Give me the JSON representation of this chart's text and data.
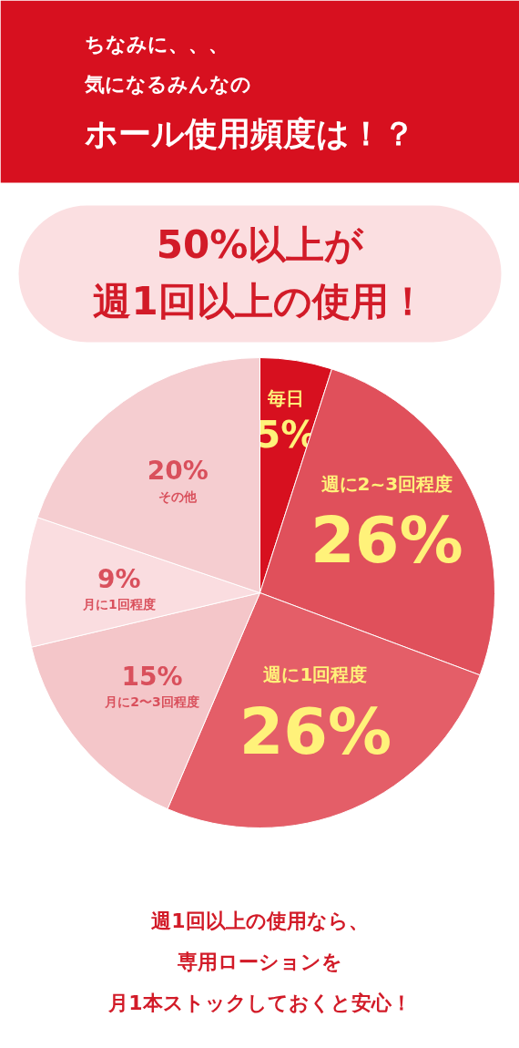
{
  "chart_data": {
    "type": "pie",
    "title": "ホール使用頻度は！？",
    "subtitle": "週1回以上の使用！",
    "categories": [
      "毎日",
      "週に2~3回程度",
      "週に1回程度",
      "月に2〜3回程度",
      "月に1回程度",
      "その他"
    ],
    "values": [
      5,
      26,
      26,
      15,
      9,
      20
    ],
    "value_labels": [
      "5%",
      "26%",
      "26%",
      "15%",
      "9%",
      "20%"
    ],
    "colors": [
      "#d7101f",
      "#e0505b",
      "#e45e68",
      "#f4c6c9",
      "#fadde0",
      "#f5cdd0"
    ],
    "annotations": [
      "ちなみに、、、",
      "気になるみんなの",
      "50%以上が",
      "週1回以上の使用なら、",
      "専用ローションを",
      "月1本ストックしておくと安心！"
    ]
  }
}
